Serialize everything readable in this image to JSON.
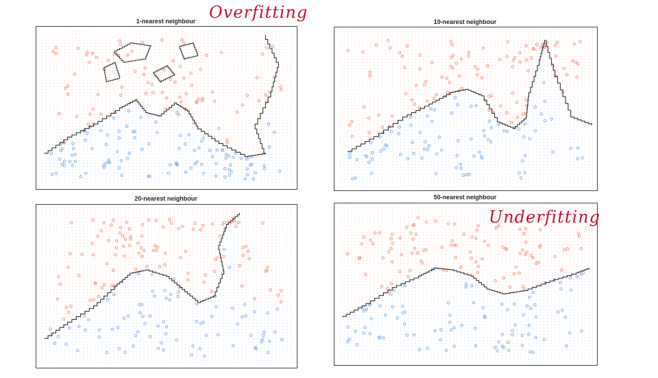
{
  "annotations": {
    "top": "Overfitting",
    "bottom": "Underfitting"
  },
  "colors": {
    "class_a": "#f08a73",
    "class_b": "#7aa6e6",
    "boundary": "#333333",
    "annotation": "#c8102e"
  },
  "chart_data": [
    {
      "type": "scatter",
      "title": "1-nearest neighbour",
      "xlabel": "",
      "ylabel": "",
      "decision_boundary": true,
      "series_colors": [
        "#f08a73",
        "#7aa6e6"
      ]
    },
    {
      "type": "scatter",
      "title": "10-nearest neighbour",
      "xlabel": "",
      "ylabel": "",
      "decision_boundary": true,
      "series_colors": [
        "#f08a73",
        "#7aa6e6"
      ]
    },
    {
      "type": "scatter",
      "title": "20-nearest neighbour",
      "xlabel": "",
      "ylabel": "",
      "decision_boundary": true,
      "series_colors": [
        "#f08a73",
        "#7aa6e6"
      ]
    },
    {
      "type": "scatter",
      "title": "50-nearest neighbour",
      "xlabel": "",
      "ylabel": "",
      "decision_boundary": true,
      "series_colors": [
        "#f08a73",
        "#7aa6e6"
      ]
    }
  ]
}
